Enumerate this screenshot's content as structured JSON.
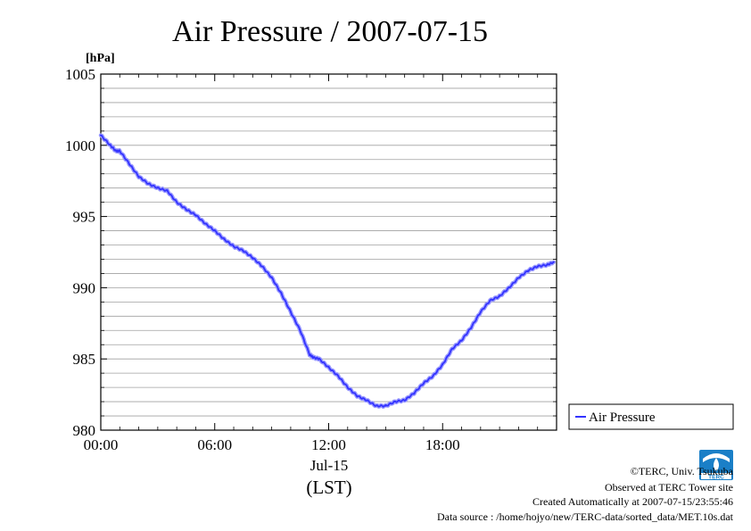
{
  "chart_data": {
    "type": "line",
    "title": "Air Pressure / 2007-07-15",
    "ylabel_unit": "[hPa]",
    "xlabel": "(LST)",
    "x_date_label": "Jul-15",
    "x_ticks": [
      "00:00",
      "06:00",
      "12:00",
      "18:00"
    ],
    "y_ticks": [
      "980",
      "985",
      "990",
      "995",
      "1000",
      "1005"
    ],
    "xlim": [
      0,
      24
    ],
    "ylim": [
      980,
      1005
    ],
    "grid": true,
    "legend": "bottom-right",
    "series": [
      {
        "name": "Air Pressure",
        "color": "#3333ff",
        "x": [
          0,
          0.5,
          0.8,
          1.0,
          1.5,
          2.0,
          2.5,
          3.0,
          3.5,
          4.0,
          4.5,
          5.0,
          5.5,
          6.0,
          6.5,
          7.0,
          7.5,
          8.0,
          8.5,
          9.0,
          9.5,
          10.0,
          10.5,
          11.0,
          11.2,
          11.5,
          12.0,
          12.5,
          13.0,
          13.5,
          14.0,
          14.5,
          15.0,
          15.5,
          16.0,
          16.5,
          17.0,
          17.5,
          18.0,
          18.5,
          19.0,
          19.5,
          20.0,
          20.5,
          21.0,
          21.5,
          22.0,
          22.5,
          23.0,
          23.5,
          23.85
        ],
        "values": [
          1000.7,
          1000.0,
          999.6,
          999.6,
          998.7,
          997.8,
          997.3,
          997.0,
          996.8,
          996.0,
          995.5,
          995.1,
          994.5,
          994.0,
          993.4,
          992.9,
          992.6,
          992.1,
          991.5,
          990.7,
          989.6,
          988.3,
          987.0,
          985.3,
          985.1,
          985.0,
          984.4,
          983.8,
          983.0,
          982.4,
          982.1,
          981.7,
          981.7,
          982.0,
          982.1,
          982.6,
          983.3,
          983.8,
          984.6,
          985.7,
          986.3,
          987.2,
          988.3,
          989.1,
          989.4,
          990.0,
          990.7,
          991.2,
          991.5,
          991.6,
          991.8
        ]
      }
    ]
  },
  "footer": {
    "copyright": "©TERC, Univ. Tsukuba",
    "observed": "Observed at TERC Tower site",
    "created": "Created Automatically at 2007-07-15/23:55:46",
    "source": "Data source : /home/hojyo/new/TERC-data/sorted_data/MET.10s.dat",
    "logo_text": "TERC"
  }
}
